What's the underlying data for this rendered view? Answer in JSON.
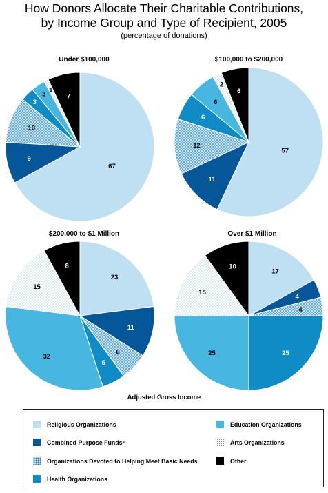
{
  "title_line1": "How Donors Allocate Their Charitable Contributions,",
  "title_line2": "by Income Group and Type of Recipient, 2005",
  "subtitle": "(percentage of donations)",
  "xlabel": "Adjusted Gross Income",
  "colors": {
    "religious": "#bfe0f3",
    "combined": "#06579a",
    "basic_needs": "#b8dcef",
    "health": "#0f8cc6",
    "education": "#47b7e2",
    "arts": "#ffffff",
    "other": "#000000"
  },
  "legend": [
    {
      "key": "religious",
      "label": "Religious Organizations",
      "sup": ""
    },
    {
      "key": "combined",
      "label": "Combined Purpose Funds",
      "sup": "a"
    },
    {
      "key": "basic_needs",
      "label": "Organizations Devoted to Helping Meet Basic Needs",
      "sup": ""
    },
    {
      "key": "health",
      "label": "Health Organizations",
      "sup": ""
    },
    {
      "key": "education",
      "label": "Education Organizations",
      "sup": ""
    },
    {
      "key": "arts",
      "label": "Arts Organizations",
      "sup": ""
    },
    {
      "key": "other",
      "label": "Other",
      "sup": ""
    }
  ],
  "chart_data": [
    {
      "type": "pie",
      "title": "Under $100,000",
      "slices": [
        {
          "key": "religious",
          "value": 67
        },
        {
          "key": "combined",
          "value": 9
        },
        {
          "key": "basic_needs",
          "value": 10
        },
        {
          "key": "health",
          "value": 3
        },
        {
          "key": "education",
          "value": 3
        },
        {
          "key": "arts",
          "value": 1
        },
        {
          "key": "other",
          "value": 7
        }
      ]
    },
    {
      "type": "pie",
      "title": "$100,000 to $200,000",
      "slices": [
        {
          "key": "religious",
          "value": 57
        },
        {
          "key": "combined",
          "value": 11
        },
        {
          "key": "basic_needs",
          "value": 12
        },
        {
          "key": "health",
          "value": 6
        },
        {
          "key": "education",
          "value": 6
        },
        {
          "key": "arts",
          "value": 2
        },
        {
          "key": "other",
          "value": 6
        }
      ]
    },
    {
      "type": "pie",
      "title": "$200,000 to $1 Million",
      "slices": [
        {
          "key": "religious",
          "value": 23
        },
        {
          "key": "combined",
          "value": 11
        },
        {
          "key": "basic_needs",
          "value": 6
        },
        {
          "key": "health",
          "value": 5
        },
        {
          "key": "education",
          "value": 32
        },
        {
          "key": "arts",
          "value": 15
        },
        {
          "key": "other",
          "value": 8
        }
      ]
    },
    {
      "type": "pie",
      "title": "Over $1 Million",
      "slices": [
        {
          "key": "religious",
          "value": 17
        },
        {
          "key": "combined",
          "value": 4
        },
        {
          "key": "basic_needs",
          "value": 4
        },
        {
          "key": "health",
          "value": 25
        },
        {
          "key": "education",
          "value": 25
        },
        {
          "key": "arts",
          "value": 15
        },
        {
          "key": "other",
          "value": 10
        }
      ]
    }
  ]
}
